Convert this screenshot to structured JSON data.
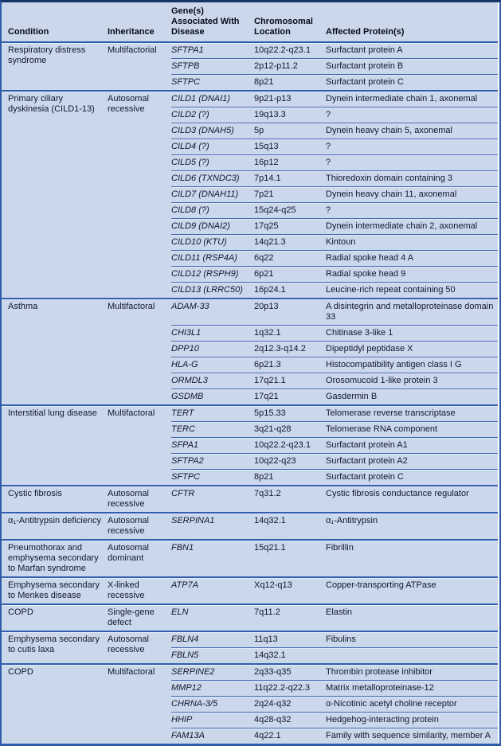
{
  "colors": {
    "table_bg": "#cbd8ec",
    "row_line": "#4068ae",
    "group_line": "#2f5fad",
    "top_border": "#17356b",
    "outer_border": "#2d5ca8",
    "text": "#10172b"
  },
  "columns": [
    "Condition",
    "Inheritance",
    "Gene(s) Associated With Disease",
    "Chromosomal Location",
    "Affected Protein(s)"
  ],
  "groups": [
    {
      "condition": "Respiratory distress syndrome",
      "inheritance": "Multifactorial",
      "rows": [
        {
          "gene": "SFTPA1",
          "location": "10q22.2-q23.1",
          "protein": "Surfactant protein A"
        },
        {
          "gene": "SFTPB",
          "location": "2p12-p11.2",
          "protein": "Surfactant protein B"
        },
        {
          "gene": "SFTPC",
          "location": "8p21",
          "protein": "Surfactant protein C"
        }
      ]
    },
    {
      "condition": "Primary ciliary dyskinesia (CILD1-13)",
      "inheritance": "Autosomal recessive",
      "rows": [
        {
          "gene": "CILD1 (DNAI1)",
          "location": "9p21-p13",
          "protein": "Dynein intermediate chain 1, axonemal"
        },
        {
          "gene": "CILD2 (?)",
          "location": "19q13.3",
          "protein": "?"
        },
        {
          "gene": "CILD3 (DNAH5)",
          "location": "5p",
          "protein": "Dynein heavy chain 5, axonemal"
        },
        {
          "gene": "CILD4 (?)",
          "location": "15q13",
          "protein": "?"
        },
        {
          "gene": "CILD5 (?)",
          "location": "16p12",
          "protein": "?"
        },
        {
          "gene": "CILD6 (TXNDC3)",
          "location": "7p14.1",
          "protein": "Thioredoxin domain containing 3"
        },
        {
          "gene": "CILD7 (DNAH11)",
          "location": "7p21",
          "protein": "Dynein heavy chain 11, axonemal"
        },
        {
          "gene": "CILD8 (?)",
          "location": "15q24-q25",
          "protein": "?"
        },
        {
          "gene": "CILD9 (DNAI2)",
          "location": "17q25",
          "protein": "Dynein intermediate chain 2, axonemal"
        },
        {
          "gene": "CILD10 (KTU)",
          "location": "14q21.3",
          "protein": "Kintoun"
        },
        {
          "gene": "CILD11 (RSP4A)",
          "location": "6q22",
          "protein": "Radial spoke head 4 A"
        },
        {
          "gene": "CILD12 (RSPH9)",
          "location": "6p21",
          "protein": "Radial spoke head 9"
        },
        {
          "gene": "CILD13 (LRRC50)",
          "location": "16p24.1",
          "protein": "Leucine-rich repeat containing 50"
        }
      ]
    },
    {
      "condition": "Asthma",
      "inheritance": "Multifactoral",
      "rows": [
        {
          "gene": "ADAM-33",
          "location": "20p13",
          "protein": "A disintegrin and metalloproteinase domain 33"
        },
        {
          "gene": "CHI3L1",
          "location": "1q32.1",
          "protein": "Chitinase 3-like 1"
        },
        {
          "gene": "DPP10",
          "location": "2q12.3-q14.2",
          "protein": "Dipeptidyl peptidase X"
        },
        {
          "gene": "HLA-G",
          "location": "6p21.3",
          "protein": "Histocompatibility antigen class I G"
        },
        {
          "gene": "ORMDL3",
          "location": "17q21.1",
          "protein": "Orosomucoid 1-like protein 3"
        },
        {
          "gene": "GSDMB",
          "location": "17q21",
          "protein": "Gasdermin B"
        }
      ]
    },
    {
      "condition": "Interstitial lung disease",
      "inheritance": "Multifactoral",
      "rows": [
        {
          "gene": "TERT",
          "location": "5p15.33",
          "protein": "Telomerase reverse transcriptase"
        },
        {
          "gene": "TERC",
          "location": "3q21-q28",
          "protein": "Telomerase RNA component"
        },
        {
          "gene": "SFPA1",
          "location": "10q22.2-q23.1",
          "protein": "Surfactant protein A1"
        },
        {
          "gene": "SFTPA2",
          "location": "10q22-q23",
          "protein": "Surfactant protein A2"
        },
        {
          "gene": "SFTPC",
          "location": "8p21",
          "protein": "Surfactant protein C"
        }
      ]
    },
    {
      "condition": "Cystic fibrosis",
      "inheritance": "Autosomal recessive",
      "rows": [
        {
          "gene": "CFTR",
          "location": "7q31.2",
          "protein": "Cystic fibrosis conductance regulator"
        }
      ]
    },
    {
      "condition": "α₁-Antitrypsin deficiency",
      "inheritance": "Autosomal recessive",
      "rows": [
        {
          "gene": "SERPINA1",
          "location": "14q32.1",
          "protein": "α₁-Antitrypsin"
        }
      ]
    },
    {
      "condition": "Pneumothorax and emphysema secondary to Marfan syndrome",
      "inheritance": "Autosomal dominant",
      "rows": [
        {
          "gene": "FBN1",
          "location": "15q21.1",
          "protein": "Fibrillin"
        }
      ]
    },
    {
      "condition": "Emphysema secondary to Menkes disease",
      "inheritance": "X-linked recessive",
      "rows": [
        {
          "gene": "ATP7A",
          "location": "Xq12-q13",
          "protein": "Copper-transporting ATPase"
        }
      ]
    },
    {
      "condition": "COPD",
      "inheritance": "Single-gene defect",
      "rows": [
        {
          "gene": "ELN",
          "location": "7q11.2",
          "protein": "Elastin"
        }
      ]
    },
    {
      "condition": "Emphysema secondary to cutis laxa",
      "inheritance": "Autosomal recessive",
      "rows": [
        {
          "gene": "FBLN4",
          "location": "11q13",
          "protein": "Fibulins"
        },
        {
          "gene": "FBLN5",
          "location": "14q32.1",
          "protein": ""
        }
      ]
    },
    {
      "condition": "COPD",
      "inheritance": "Multifactoral",
      "rows": [
        {
          "gene": "SERPINE2",
          "location": "2q33-q35",
          "protein": "Thrombin protease inhibitor"
        },
        {
          "gene": "MMP12",
          "location": "11q22.2-q22.3",
          "protein": "Matrix metalloproteinase-12"
        },
        {
          "gene": "CHRNA-3/5",
          "location": "2q24-q32",
          "protein": "α-Nicotinic acetyl choline receptor"
        },
        {
          "gene": "HHIP",
          "location": "4q28-q32",
          "protein": "Hedgehog-interacting protein"
        },
        {
          "gene": "FAM13A",
          "location": "4q22.1",
          "protein": "Family with sequence similarity, member A"
        }
      ]
    }
  ]
}
